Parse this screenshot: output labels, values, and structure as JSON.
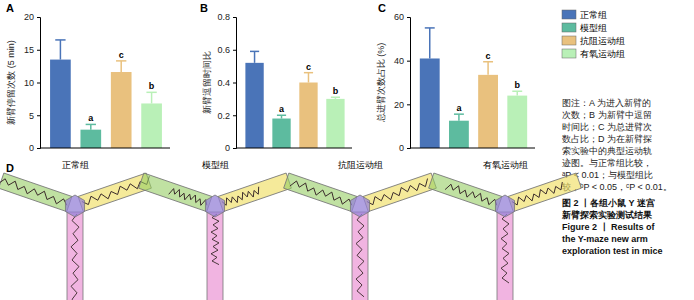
{
  "chart_data": [
    {
      "type": "bar",
      "title": "A",
      "y_label": "新臂停留次数 (5 min)",
      "categories": [
        "正常组",
        "模型组",
        "抗阻运动组",
        "有氧运动组"
      ],
      "values": [
        13.5,
        2.8,
        11.6,
        6.8
      ],
      "errors": [
        3.0,
        0.8,
        1.7,
        1.7
      ],
      "colors": [
        "#4a74b8",
        "#5dbb9f",
        "#e9c17e",
        "#b9f0b7"
      ],
      "ylim": [
        0,
        20
      ],
      "yticks": [
        0,
        5,
        10,
        15,
        20
      ],
      "tick_labels": "y",
      "legend": "right",
      "annotations": [
        {
          "category": "模型组",
          "text": "a"
        },
        {
          "category": "抗阻运动组",
          "text": "c"
        },
        {
          "category": "有氧运动组",
          "text": "b"
        }
      ]
    },
    {
      "type": "bar",
      "title": "B",
      "y_label": "新臂逗留时间比",
      "categories": [
        "正常组",
        "模型组",
        "抗阻运动组",
        "有氧运动组"
      ],
      "values": [
        0.52,
        0.18,
        0.4,
        0.3
      ],
      "errors": [
        0.07,
        0.02,
        0.06,
        0.01
      ],
      "colors": [
        "#4a74b8",
        "#5dbb9f",
        "#e9c17e",
        "#b9f0b7"
      ],
      "ylim": [
        0,
        0.8
      ],
      "yticks": [
        0,
        0.2,
        0.4,
        0.6,
        0.8
      ],
      "tick_labels": "y",
      "annotations": [
        {
          "category": "模型组",
          "text": "a"
        },
        {
          "category": "抗阻运动组",
          "text": "c"
        },
        {
          "category": "有氧运动组",
          "text": "b"
        }
      ]
    },
    {
      "type": "bar",
      "title": "C",
      "y_label": "总进臂次数占比 (%)",
      "categories": [
        "正常组",
        "模型组",
        "抗阻运动组",
        "有氧运动组"
      ],
      "values": [
        41,
        12.5,
        33.5,
        24
      ],
      "errors": [
        14,
        3,
        6,
        2
      ],
      "colors": [
        "#4a74b8",
        "#5dbb9f",
        "#e9c17e",
        "#b9f0b7"
      ],
      "ylim": [
        0,
        60
      ],
      "yticks": [
        0,
        20,
        40,
        60
      ],
      "tick_labels": "y",
      "annotations": [
        {
          "category": "模型组",
          "text": "a"
        },
        {
          "category": "抗阻运动组",
          "text": "c"
        },
        {
          "category": "有氧运动组",
          "text": "b"
        }
      ]
    }
  ],
  "caption": {
    "notes": [
      "图注：A 为进入新臂的",
      "次数；B 为新臂中逗留",
      "时间比；C 为总进臂次",
      "数占比；D 为在新臂探",
      "索实验中的典型运动轨",
      "迹图。与正常组比较，",
      "ᵃP < 0.01；与模型组比",
      "较，ᵇP < 0.05，ᶜP < 0.01。"
    ],
    "figure_title": [
      "图 2 丨各组小鼠 Y 迷宫",
      "新臂探索实验测试结果",
      "Figure 2 丨 Results of",
      "the Y-maze new arm",
      "exploration test in mice"
    ]
  },
  "panel_d": {
    "label": "D",
    "groups": [
      "正常组",
      "模型组",
      "抗阻运动组",
      "有氧运动组"
    ]
  }
}
